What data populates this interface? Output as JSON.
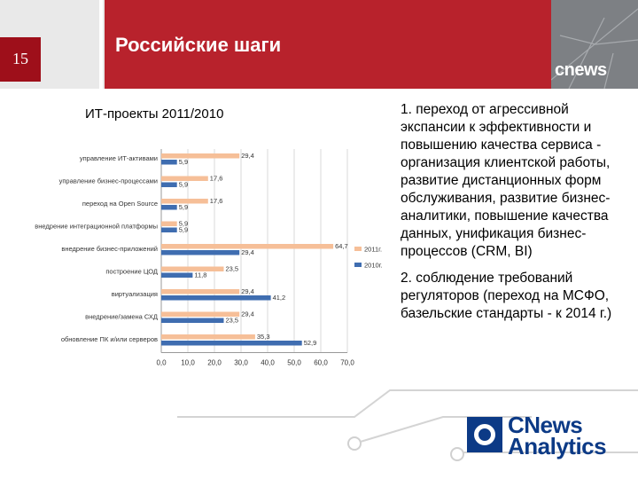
{
  "slide": {
    "number": "15",
    "title": "Российские шаги"
  },
  "header": {
    "logo_text": "cnews",
    "colors": {
      "red": "#b8222c",
      "dark_red": "#9e0f1a",
      "grey": "#7d8084"
    }
  },
  "chart_title": "ИТ-проекты 2011/2010",
  "chart_data": {
    "type": "bar",
    "orientation": "horizontal",
    "categories": [
      "управление ИТ-активами",
      "управление бизнес-процессами",
      "переход на Open Source",
      "внедрение интеграционной платформы",
      "внедрение бизнес-приложений",
      "построение ЦОД",
      "виртуализация",
      "внедрение/замена СХД",
      "обновление ПК и/или серверов"
    ],
    "series": [
      {
        "name": "2011г.",
        "color": "#f6bf98",
        "values": [
          29.4,
          17.6,
          17.6,
          5.9,
          64.7,
          23.5,
          29.4,
          29.4,
          35.3
        ],
        "labels": [
          "29,4",
          "17,6",
          "17,6",
          "5,9",
          "64,7",
          "23,5",
          "29,4",
          "29,4",
          "35,3"
        ]
      },
      {
        "name": "2010г.",
        "color": "#3f6db0",
        "values": [
          5.9,
          5.9,
          5.9,
          5.9,
          29.4,
          11.8,
          41.2,
          23.5,
          52.9
        ],
        "labels": [
          "5,9",
          "5,9",
          "5,9",
          "5,9",
          "29,4",
          "11,8",
          "41,2",
          "23,5",
          "52,9"
        ]
      }
    ],
    "xlim": [
      0,
      70
    ],
    "x_ticks": [
      "0,0",
      "10,0",
      "20,0",
      "30,0",
      "40,0",
      "50,0",
      "60,0",
      "70,0"
    ],
    "grid": true,
    "legend": "right"
  },
  "text": {
    "point1": "1. переход от агрессивной экспансии к эффективности и повышению качества сервиса - организация клиентской работы, развитие дистанционных форм обслуживания, развитие бизнес-аналитики, повышение качества данных, унификация бизнес-процессов (CRM, BI)",
    "point2": "2. соблюдение требований регуляторов (переход на МСФО, базельские стандарты - к 2014 г.)"
  },
  "brand": {
    "line1": "CNews",
    "line2": "Analytics",
    "color": "#0c3a86"
  }
}
